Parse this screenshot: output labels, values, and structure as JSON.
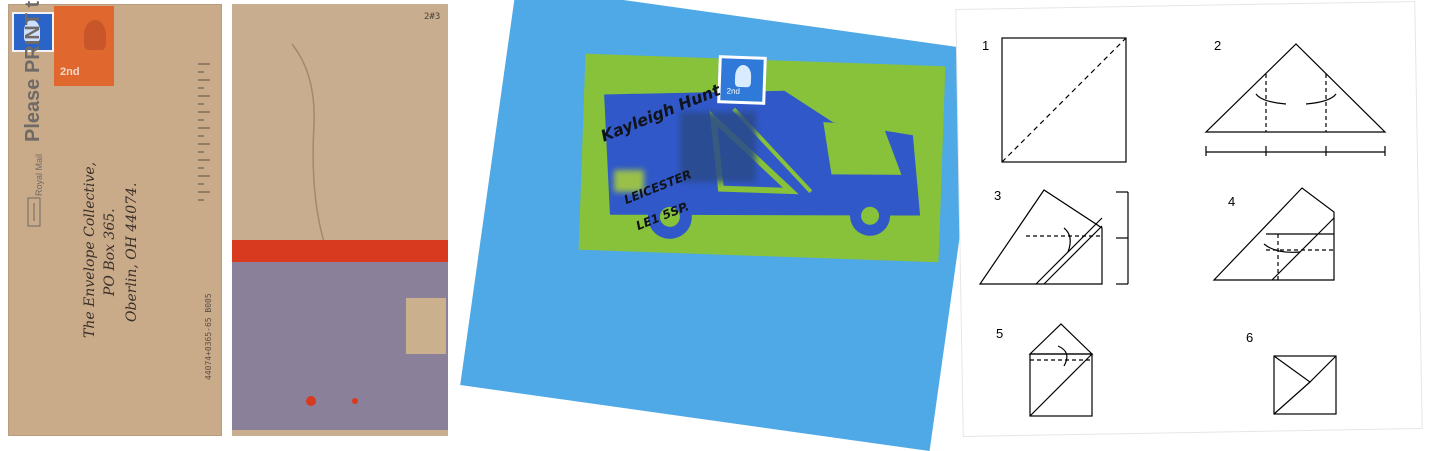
{
  "envelope_front": {
    "postmark_words": "Please PRINT the Postcode",
    "postmark_service": "Royal Mail",
    "stamp_value": "2nd",
    "address": {
      "line1": "The Envelope Collective,",
      "line2": "PO Box 365.",
      "line3": "Oberlin, OH 44074."
    },
    "barcode_digits": "44074+0365-65 B005"
  },
  "envelope_back": {
    "corner_mark": "2#3"
  },
  "blue_card": {
    "name": "Kayleigh Hunt",
    "city": "LEICESTER",
    "postcode": "LE1 5SP.",
    "stamp_value": "2nd"
  },
  "instructions": {
    "steps": [
      "1",
      "2",
      "3",
      "4",
      "5",
      "6"
    ]
  }
}
